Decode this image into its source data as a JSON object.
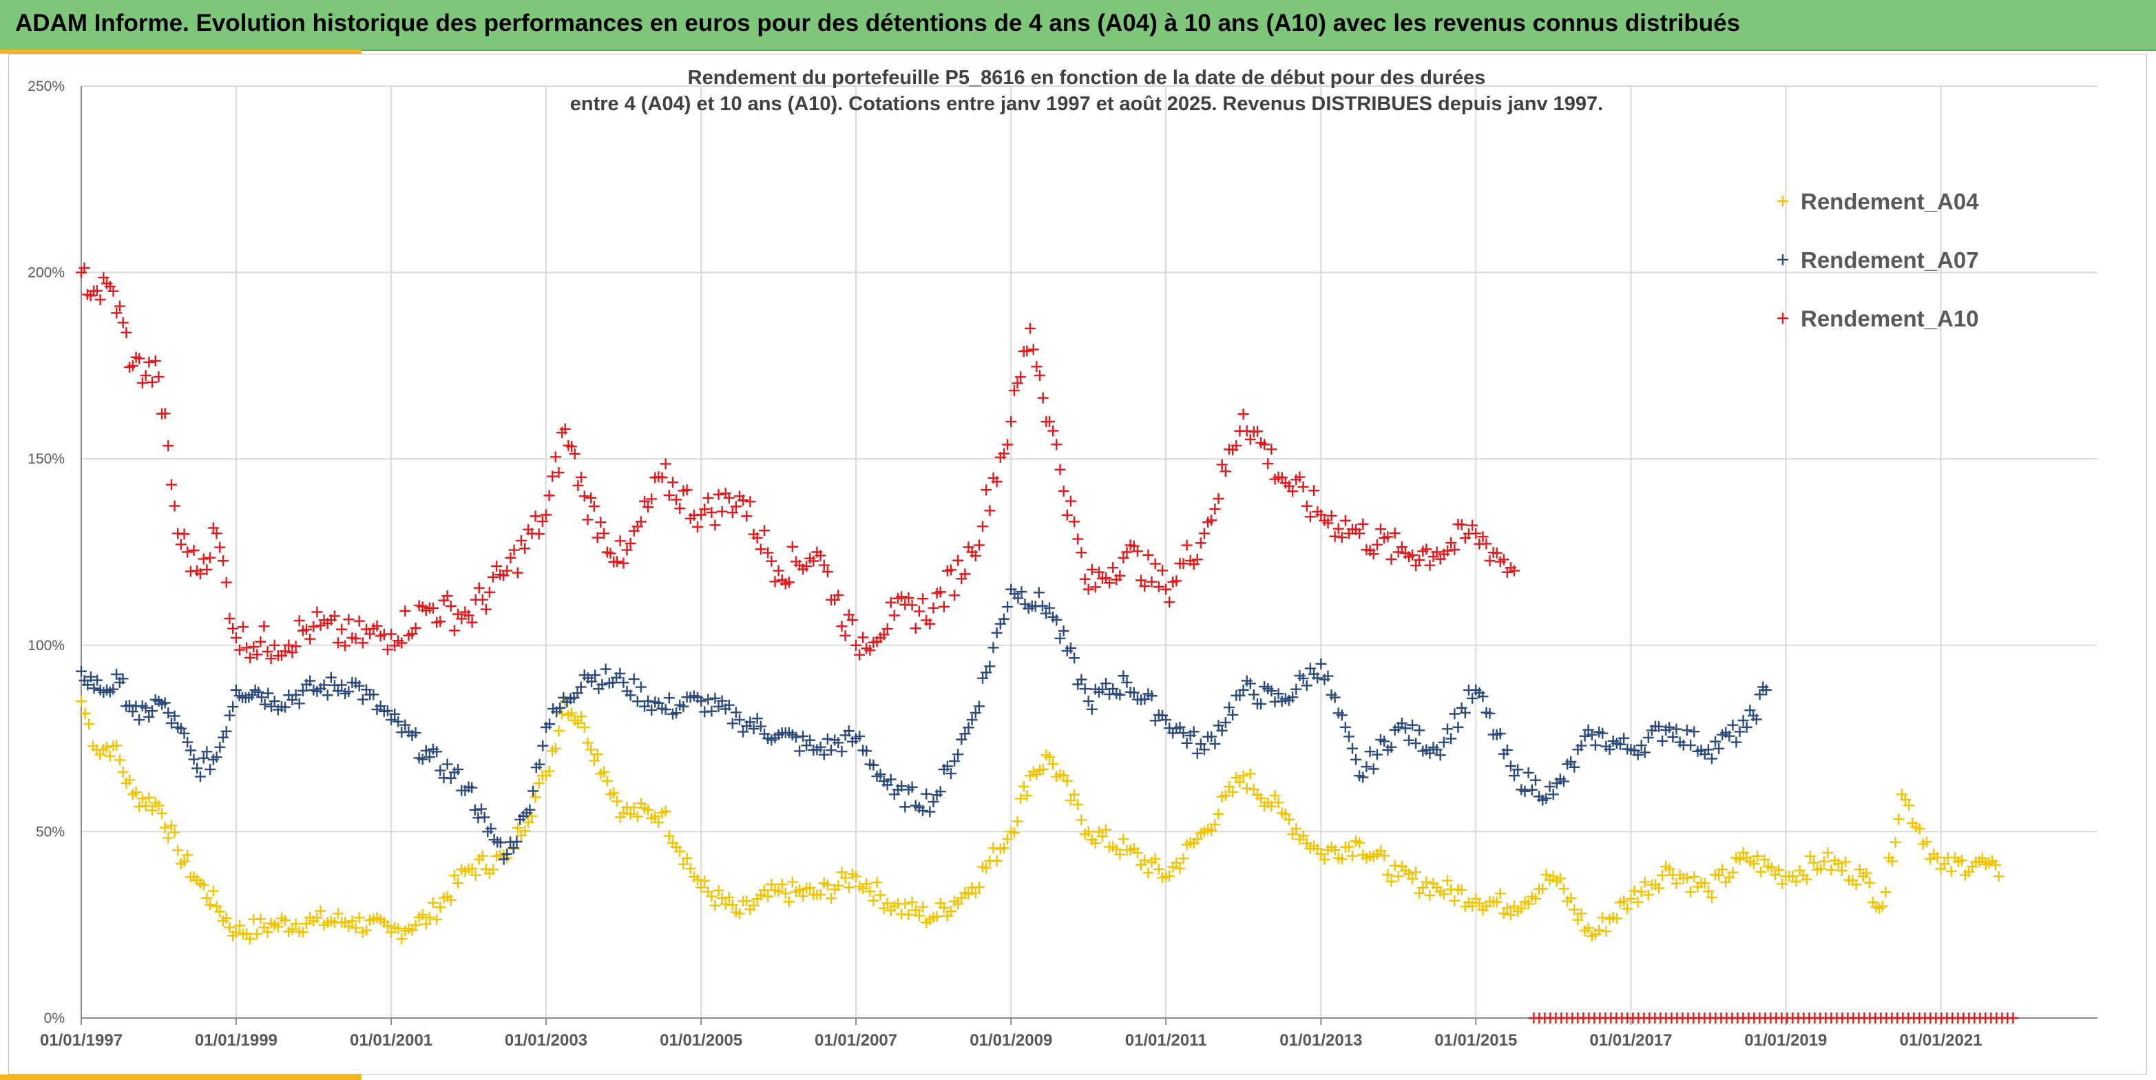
{
  "banner": {
    "title": "ADAM Informe. Evolution historique des performances en euros pour des détentions de 4 ans (A04) à 10 ans (A10) avec les revenus connus distribués"
  },
  "colors": {
    "banner": "#7dc67a",
    "accent": "#f2b51c"
  },
  "chart_data": {
    "type": "scatter",
    "marker": "+",
    "title_line1": "Rendement du portefeuille P5_8616 en fonction de la date de début pour des durées",
    "title_line2": "entre 4 (A04) et 10 ans (A10). Cotations entre janv 1997 et août 2025. Revenus DISTRIBUES depuis janv 1997.",
    "xlabel": "",
    "ylabel": "",
    "x_range": [
      "1997-01-01",
      "2022-01-01"
    ],
    "ylim": [
      0,
      2.5
    ],
    "y_ticks": [
      "0%",
      "50%",
      "100%",
      "150%",
      "200%",
      "250%"
    ],
    "x_ticks": [
      "01/01/1997",
      "01/01/1999",
      "01/01/2001",
      "01/01/2003",
      "01/01/2005",
      "01/01/2007",
      "01/01/2009",
      "01/01/2011",
      "01/01/2013",
      "01/01/2015",
      "01/01/2017",
      "01/01/2019",
      "01/01/2021"
    ],
    "grid": true,
    "legend_position": "top-right",
    "series": [
      {
        "name": "Rendement_A04",
        "color": "#f2c300",
        "x": [
          "1997-01-01",
          "1997-03-15",
          "1997-06-01",
          "1997-09-01",
          "1998-01-01",
          "1998-04-01",
          "1998-07-01",
          "1998-10-01",
          "1999-01-01",
          "1999-07-01",
          "2000-01-01",
          "2000-07-01",
          "2001-01-01",
          "2001-07-01",
          "2002-01-01",
          "2002-07-01",
          "2003-01-01",
          "2003-04-01",
          "2003-07-01",
          "2003-10-01",
          "2004-01-01",
          "2004-07-01",
          "2005-01-01",
          "2005-07-01",
          "2006-01-01",
          "2006-07-01",
          "2007-01-01",
          "2007-07-01",
          "2008-01-01",
          "2008-07-01",
          "2009-01-01",
          "2009-04-01",
          "2009-07-01",
          "2010-01-01",
          "2010-07-01",
          "2011-01-01",
          "2011-07-01",
          "2012-01-01",
          "2012-07-01",
          "2013-01-01",
          "2013-07-01",
          "2014-01-01",
          "2014-07-01",
          "2015-01-01",
          "2015-07-01",
          "2016-01-01",
          "2016-07-01",
          "2017-01-01",
          "2017-07-01",
          "2018-01-01",
          "2018-07-01",
          "2019-01-01",
          "2019-07-01",
          "2020-01-01",
          "2020-04-01",
          "2020-07-01",
          "2021-01-01",
          "2021-07-01",
          "2021-10-01"
        ],
        "values": [
          0.85,
          0.72,
          0.73,
          0.6,
          0.57,
          0.45,
          0.37,
          0.3,
          0.23,
          0.25,
          0.26,
          0.26,
          0.23,
          0.27,
          0.4,
          0.43,
          0.65,
          0.85,
          0.78,
          0.66,
          0.55,
          0.55,
          0.35,
          0.28,
          0.34,
          0.33,
          0.38,
          0.3,
          0.27,
          0.35,
          0.5,
          0.65,
          0.7,
          0.5,
          0.45,
          0.38,
          0.5,
          0.65,
          0.55,
          0.44,
          0.47,
          0.38,
          0.35,
          0.32,
          0.3,
          0.38,
          0.22,
          0.32,
          0.4,
          0.34,
          0.43,
          0.38,
          0.42,
          0.38,
          0.3,
          0.6,
          0.4,
          0.42,
          0.38
        ]
      },
      {
        "name": "Rendement_A07",
        "color": "#2c4a7a",
        "x": [
          "1997-01-01",
          "1997-04-01",
          "1997-07-01",
          "1997-10-01",
          "1998-01-01",
          "1998-04-01",
          "1998-07-01",
          "1998-10-01",
          "1999-01-01",
          "1999-04-01",
          "1999-07-01",
          "2000-01-01",
          "2000-07-01",
          "2001-01-01",
          "2001-07-01",
          "2002-01-01",
          "2002-04-01",
          "2002-07-01",
          "2002-10-01",
          "2003-01-01",
          "2003-07-01",
          "2004-01-01",
          "2004-07-01",
          "2005-01-01",
          "2005-07-01",
          "2006-01-01",
          "2006-07-01",
          "2007-01-01",
          "2007-07-01",
          "2008-01-01",
          "2008-07-01",
          "2009-01-01",
          "2009-07-01",
          "2010-01-01",
          "2010-07-01",
          "2011-01-01",
          "2011-07-01",
          "2012-01-01",
          "2012-07-01",
          "2013-01-01",
          "2013-07-01",
          "2014-01-01",
          "2014-07-01",
          "2015-01-01",
          "2015-07-01",
          "2016-01-01",
          "2016-07-01",
          "2017-01-01",
          "2017-07-01",
          "2018-01-01",
          "2018-07-01",
          "2018-10-01"
        ],
        "values": [
          0.93,
          0.88,
          0.9,
          0.8,
          0.85,
          0.78,
          0.67,
          0.7,
          0.88,
          0.88,
          0.85,
          0.88,
          0.9,
          0.8,
          0.7,
          0.62,
          0.5,
          0.44,
          0.55,
          0.78,
          0.92,
          0.9,
          0.83,
          0.85,
          0.8,
          0.76,
          0.72,
          0.75,
          0.6,
          0.58,
          0.8,
          1.15,
          1.1,
          0.85,
          0.9,
          0.8,
          0.72,
          0.88,
          0.85,
          0.95,
          0.65,
          0.78,
          0.72,
          0.88,
          0.65,
          0.6,
          0.76,
          0.72,
          0.78,
          0.72,
          0.78,
          0.88
        ]
      },
      {
        "name": "Rendement_A10",
        "color": "#e3191c",
        "x": [
          "1997-01-01",
          "1997-03-01",
          "1997-06-01",
          "1997-09-01",
          "1998-01-01",
          "1998-04-01",
          "1998-07-01",
          "1998-10-01",
          "1999-01-01",
          "1999-07-01",
          "2000-01-01",
          "2000-07-01",
          "2001-01-01",
          "2001-07-01",
          "2002-01-01",
          "2002-07-01",
          "2003-01-01",
          "2003-04-01",
          "2003-07-01",
          "2003-10-01",
          "2004-01-01",
          "2004-07-01",
          "2005-01-01",
          "2005-07-01",
          "2006-01-01",
          "2006-07-01",
          "2007-01-01",
          "2007-07-01",
          "2008-01-01",
          "2008-07-01",
          "2009-01-01",
          "2009-04-01",
          "2009-07-01",
          "2010-01-01",
          "2010-07-01",
          "2011-01-01",
          "2011-07-01",
          "2012-01-01",
          "2012-07-01",
          "2013-01-01",
          "2013-07-01",
          "2014-01-01",
          "2014-07-01",
          "2015-01-01",
          "2015-07-01"
        ],
        "values": [
          2.0,
          1.95,
          1.95,
          1.75,
          1.72,
          1.3,
          1.2,
          1.3,
          1.02,
          1.0,
          1.05,
          1.02,
          1.03,
          1.1,
          1.08,
          1.2,
          1.35,
          1.58,
          1.4,
          1.3,
          1.22,
          1.45,
          1.35,
          1.4,
          1.2,
          1.25,
          1.0,
          1.08,
          1.1,
          1.25,
          1.6,
          1.85,
          1.6,
          1.15,
          1.25,
          1.15,
          1.3,
          1.62,
          1.45,
          1.35,
          1.3,
          1.25,
          1.25,
          1.3,
          1.2
        ]
      }
    ],
    "zero_markers": {
      "color": "#e3191c",
      "x_start": "2015-10-01",
      "x_end": "2022-01-01",
      "value": 0.0
    }
  }
}
